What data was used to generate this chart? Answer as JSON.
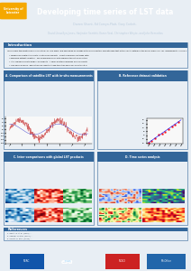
{
  "title": "Developing time series of LST data",
  "authors_line1": "Darren Ghent, Ed Comyn-Platt, Gary Corlett,",
  "authors_line2": "David Llewellyn-Jones, Harjinder Sembhi, Karen Veal, Christopher Whyte, and John Remedios",
  "header_bg": "#003366",
  "header_logo_color": "#f5a800",
  "body_bg": "#e8eef4",
  "section_bg": "#ffffff",
  "section_header_bg": "#336699",
  "section_header_color": "#ffffff",
  "title_color": "#ffffff",
  "author_color": "#ccddee",
  "intro_header": "Introduction",
  "sec_a_title": "A. Comparison of satellite LST with in-situ measurements",
  "sec_b_title": "B. Reference dataset validation",
  "sec_c_title": "C. Inter-comparisons with global LST products",
  "sec_d_title": "D. Time series analysis",
  "references_title": "References",
  "footer_bg": "#003366",
  "univ_logo_text": "University of\nLeicester",
  "esa_text": "esa",
  "accent_color": "#336699",
  "light_blue": "#aaccee",
  "panel_border": "#336699"
}
